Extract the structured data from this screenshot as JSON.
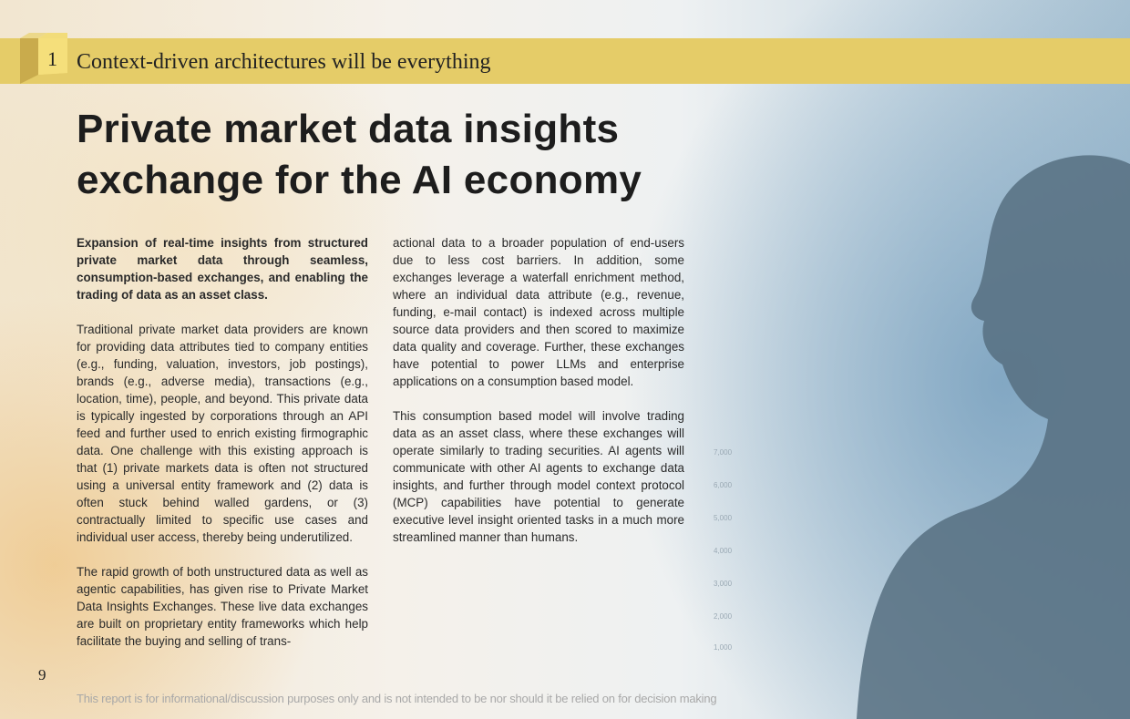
{
  "header": {
    "section_number": "1",
    "section_title": "Context-driven architectures will be everything"
  },
  "title": "Private market data insights exchange for the AI economy",
  "column1": [
    "Expansion of real-time insights from structured private market data through seamless, consumption-based exchanges, and enabling the trading of data as an asset class.",
    "Traditional private market data providers are known for providing data attributes tied to company entities (e.g., funding, valuation, investors, job postings), brands (e.g., adverse media), transactions (e.g., location, time), people, and beyond. This private data is typically ingested by corporations through an API feed and further used to enrich existing firmographic data. One challenge with this existing approach is that (1) private markets data is often not structured using a universal entity framework and (2) data is often stuck behind walled gardens, or (3) contractually limited to specific use cases and individual user access, thereby being underutilized.",
    "The rapid growth of both unstructured data as well as agentic capabilities, has given rise to Private Market Data Insights Exchanges. These live data exchanges are built on proprietary entity frameworks which help facilitate the buying and selling of trans-"
  ],
  "column2": [
    "actional data to a broader population of end-users due to less cost barriers. In addition, some exchanges leverage a waterfall enrichment method, where an individual data attribute (e.g., revenue, funding, e-mail contact) is indexed across multiple source data providers and then scored to maximize data quality and coverage. Further, these exchanges have potential to power LLMs and enterprise applications on a consumption based model.",
    "This consumption based model will involve trading data as an asset class, where these exchanges will operate similarly to trading securities. AI agents will communicate with other AI agents to exchange data insights, and further through model context protocol (MCP) capabilities have potential to generate executive level insight oriented tasks in a much more streamlined manner than humans."
  ],
  "background_ticks": [
    "7,000",
    "6,000",
    "5,000",
    "4,000",
    "3,000",
    "2,000",
    "1,000"
  ],
  "page_number": "9",
  "disclaimer": "This report is for informational/discussion purposes only and is not intended to be nor should it be relied on for decision making",
  "colors": {
    "band": "#e5cc68",
    "text": "#1d1d1d"
  }
}
